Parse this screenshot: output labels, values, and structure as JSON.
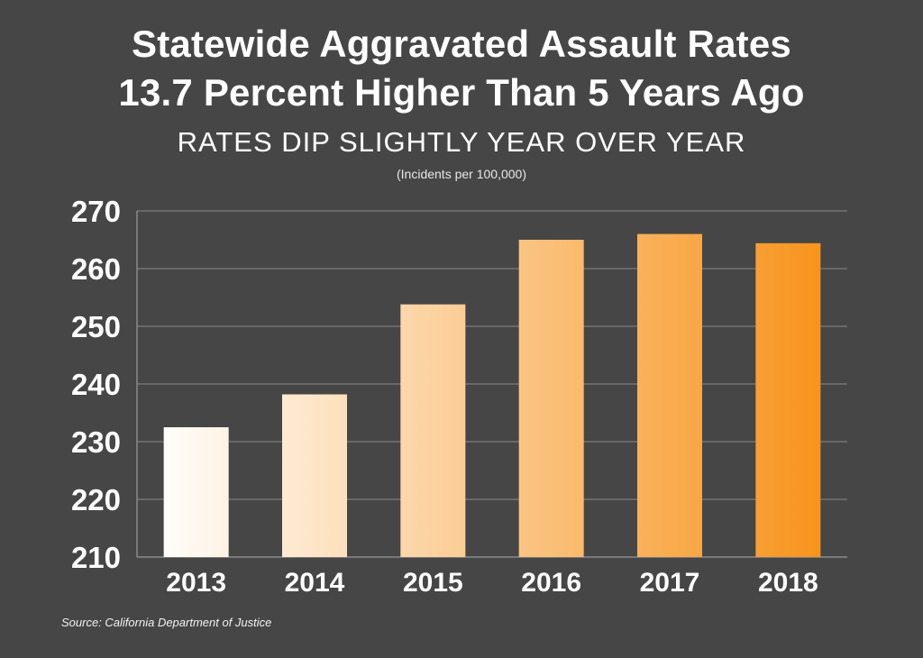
{
  "header": {
    "title_line_1": "Statewide Aggravated Assault Rates",
    "title_line_2": "13.7 Percent Higher Than 5 Years Ago",
    "subtitle": "RATES DIP SLIGHTLY YEAR OVER YEAR",
    "units_note": "(Incidents per 100,000)"
  },
  "footer": {
    "source": "Source: California Department of Justice"
  },
  "colors": {
    "background": "#464646",
    "gridline": "#8a8a8a",
    "bar_start": "#fffdfa",
    "bar_end": "#f7941d"
  },
  "chart_data": {
    "type": "bar",
    "title": "Statewide Aggravated Assault Rates 13.7 Percent Higher Than 5 Years Ago",
    "subtitle": "RATES DIP SLIGHTLY YEAR OVER YEAR",
    "ylabel": "(Incidents per 100,000)",
    "xlabel": "",
    "categories": [
      "2013",
      "2014",
      "2015",
      "2016",
      "2017",
      "2018"
    ],
    "values": [
      232.5,
      238.2,
      253.8,
      265.0,
      266.0,
      264.4
    ],
    "ylim": [
      210,
      270
    ],
    "yticks": [
      210,
      220,
      230,
      240,
      250,
      260,
      270
    ],
    "grid": true,
    "legend": "none"
  }
}
